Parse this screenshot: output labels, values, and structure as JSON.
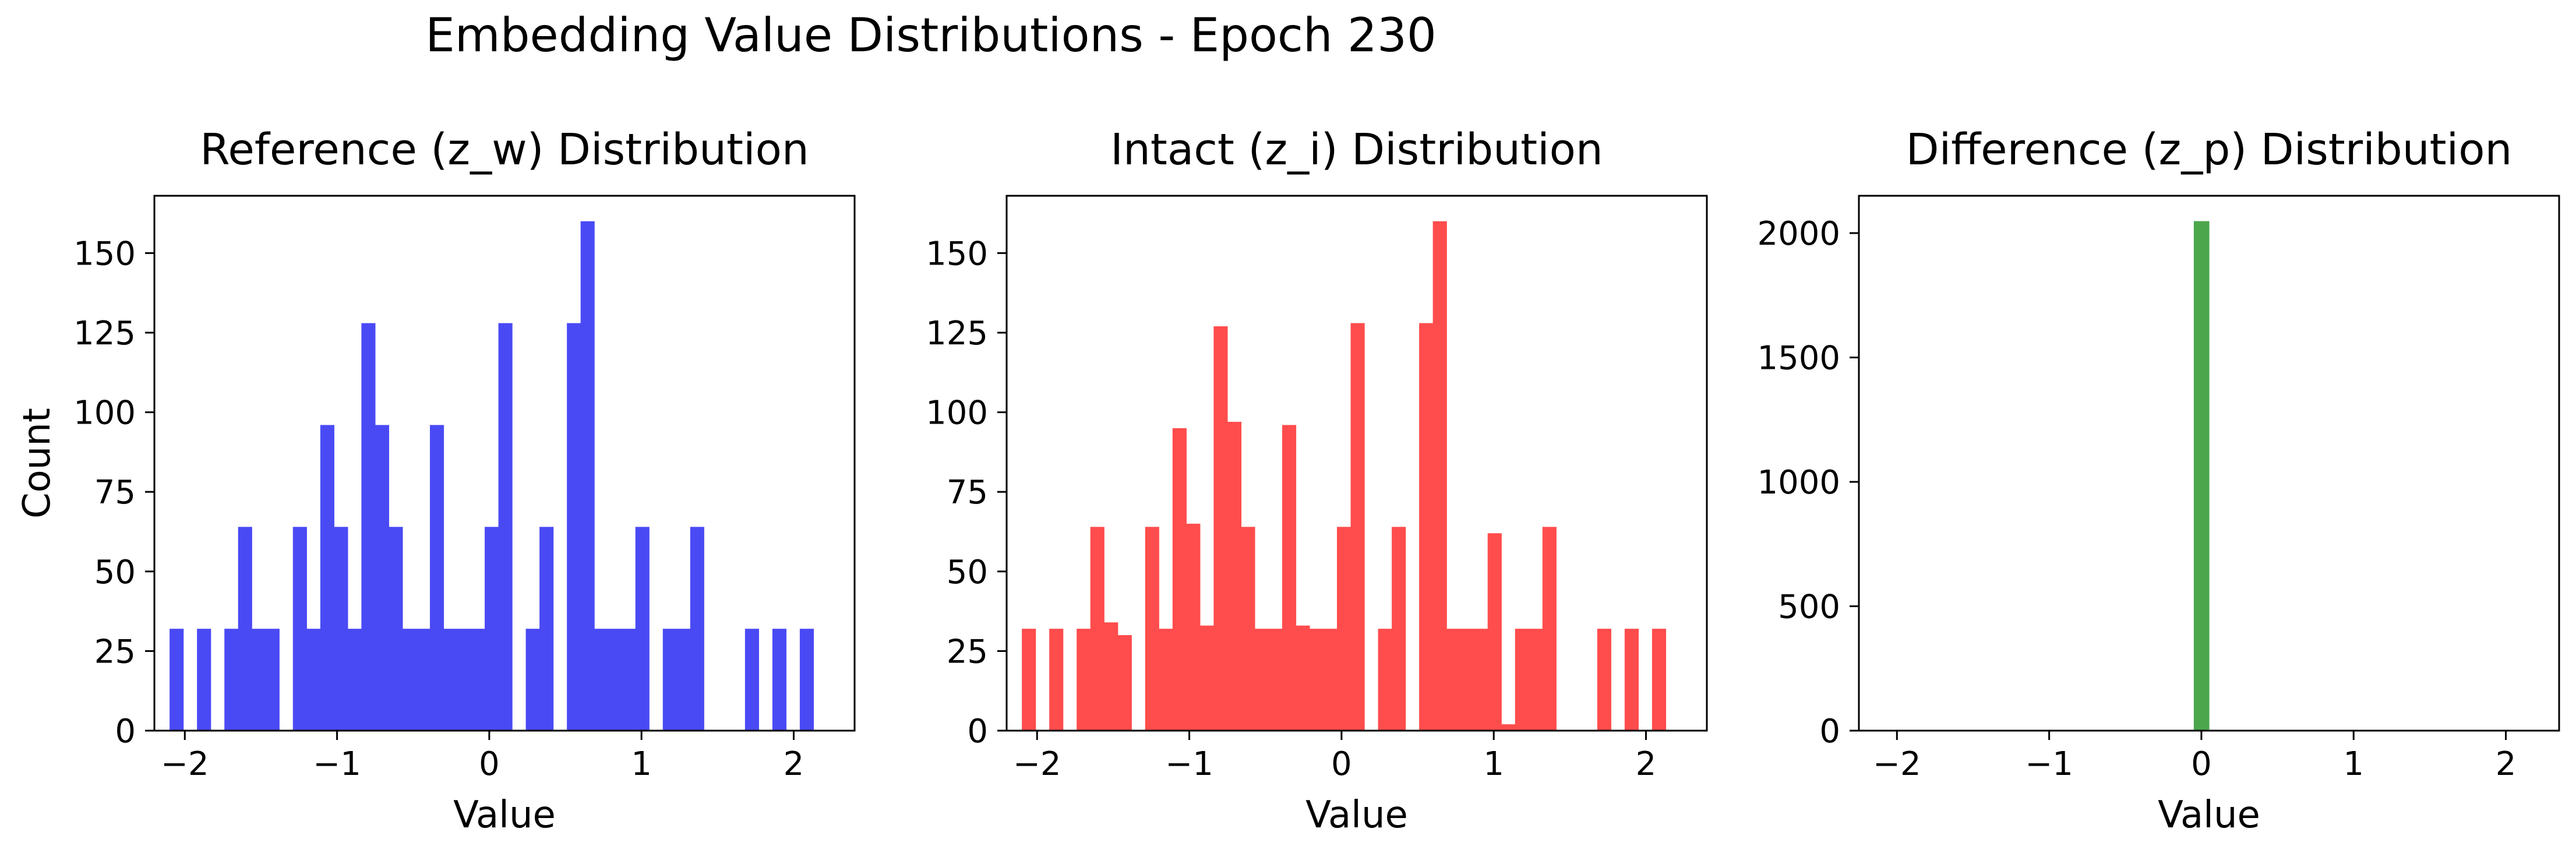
{
  "figure": {
    "title": "Embedding Value Distributions - Epoch 230"
  },
  "chart_data": [
    {
      "type": "bar",
      "title": "Reference (z_w) Distribution",
      "xlabel": "Value",
      "ylabel": "Count",
      "color": "#4a4af5",
      "xlim": [
        -2.2,
        2.4
      ],
      "ylim": [
        0,
        168
      ],
      "xticks": [
        -2,
        -1,
        0,
        1,
        2
      ],
      "yticks": [
        0,
        25,
        50,
        75,
        100,
        125,
        150
      ],
      "bin_start": -2.1,
      "bin_width": 0.09,
      "values": [
        32,
        0,
        32,
        0,
        32,
        64,
        32,
        32,
        0,
        64,
        32,
        96,
        64,
        32,
        128,
        96,
        64,
        32,
        32,
        96,
        32,
        32,
        32,
        64,
        128,
        0,
        32,
        64,
        0,
        128,
        160,
        32,
        32,
        32,
        64,
        0,
        32,
        32,
        64,
        0,
        0,
        0,
        32,
        0,
        32,
        0,
        32
      ]
    },
    {
      "type": "bar",
      "title": "Intact (z_i) Distribution",
      "xlabel": "Value",
      "ylabel": "",
      "color": "#ff4c4c",
      "xlim": [
        -2.2,
        2.4
      ],
      "ylim": [
        0,
        168
      ],
      "xticks": [
        -2,
        -1,
        0,
        1,
        2
      ],
      "yticks": [
        0,
        25,
        50,
        75,
        100,
        125,
        150
      ],
      "bin_start": -2.1,
      "bin_width": 0.09,
      "values": [
        32,
        0,
        32,
        0,
        32,
        64,
        34,
        30,
        0,
        64,
        32,
        95,
        65,
        33,
        127,
        97,
        64,
        32,
        32,
        96,
        33,
        32,
        32,
        64,
        128,
        0,
        32,
        64,
        0,
        128,
        160,
        32,
        32,
        32,
        62,
        2,
        32,
        32,
        64,
        0,
        0,
        0,
        32,
        0,
        32,
        0,
        32
      ]
    },
    {
      "type": "bar",
      "title": "Difference (z_p) Distribution",
      "xlabel": "Value",
      "ylabel": "",
      "color": "#4ca64c",
      "xlim": [
        -2.25,
        2.35
      ],
      "ylim": [
        0,
        2150
      ],
      "xticks": [
        -2,
        -1,
        0,
        1,
        2
      ],
      "yticks": [
        0,
        500,
        1000,
        1500,
        2000
      ],
      "bin_start": -0.05,
      "bin_width": 0.1,
      "values": [
        2048
      ]
    }
  ]
}
